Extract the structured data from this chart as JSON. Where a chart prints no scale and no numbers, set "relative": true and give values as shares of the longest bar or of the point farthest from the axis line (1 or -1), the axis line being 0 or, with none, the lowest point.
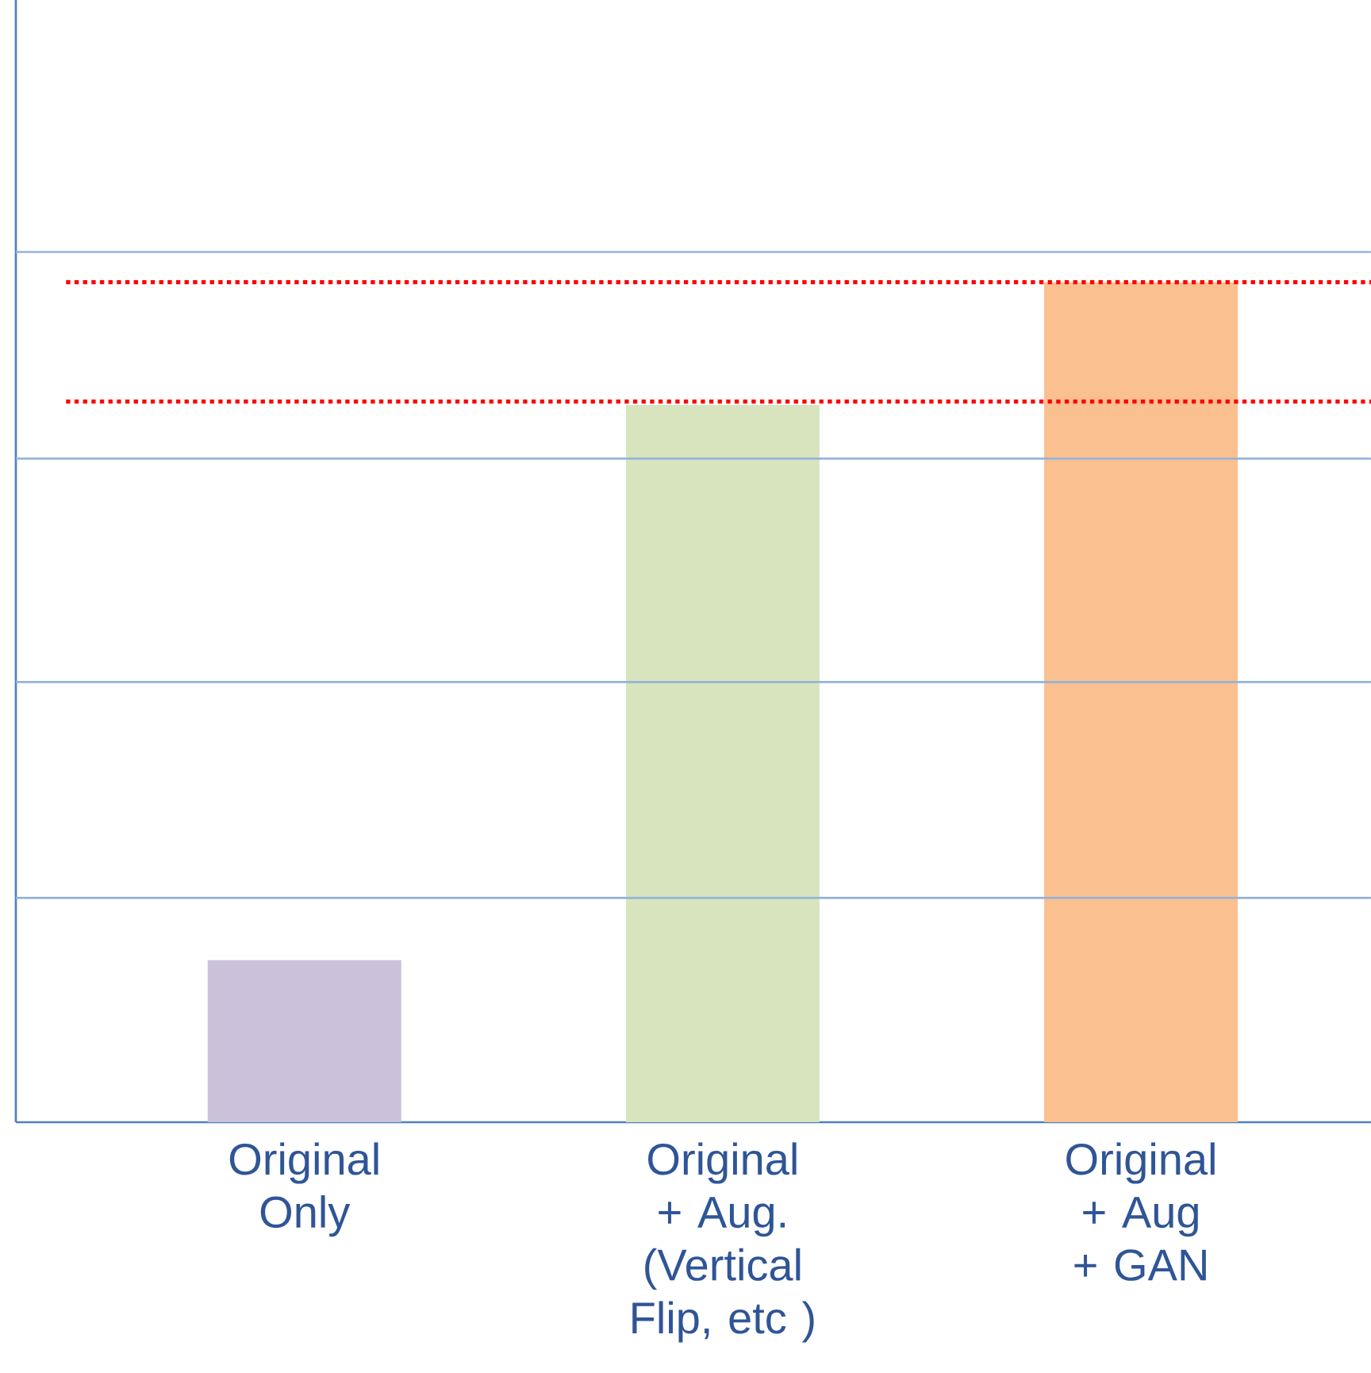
{
  "chart_data": {
    "type": "bar",
    "relative": true,
    "categories": [
      "Original Only",
      "Original + Aug. (Vertical Flip, etc )",
      "Original + Aug + GAN"
    ],
    "values": [
      0.193,
      0.854,
      1
    ],
    "colors": [
      "#ccc1da",
      "#d7e4bd",
      "#fac090"
    ],
    "ref_lines": [
      {
        "axis": "y",
        "value": 0.267,
        "color": "#95b3d7",
        "line_style": "solid"
      },
      {
        "axis": "y",
        "value": 0.524,
        "color": "#95b3d7",
        "line_style": "solid"
      },
      {
        "axis": "y",
        "value": 0.79,
        "color": "#95b3d7",
        "line_style": "solid"
      },
      {
        "axis": "y",
        "value": 1.036,
        "color": "#95b3d7",
        "line_style": "solid"
      },
      {
        "axis": "y",
        "value": 1,
        "color": "#ff0000",
        "line_style": "dotted"
      },
      {
        "axis": "y",
        "value": 0.858,
        "color": "#ff0000",
        "line_style": "dotted"
      }
    ]
  }
}
